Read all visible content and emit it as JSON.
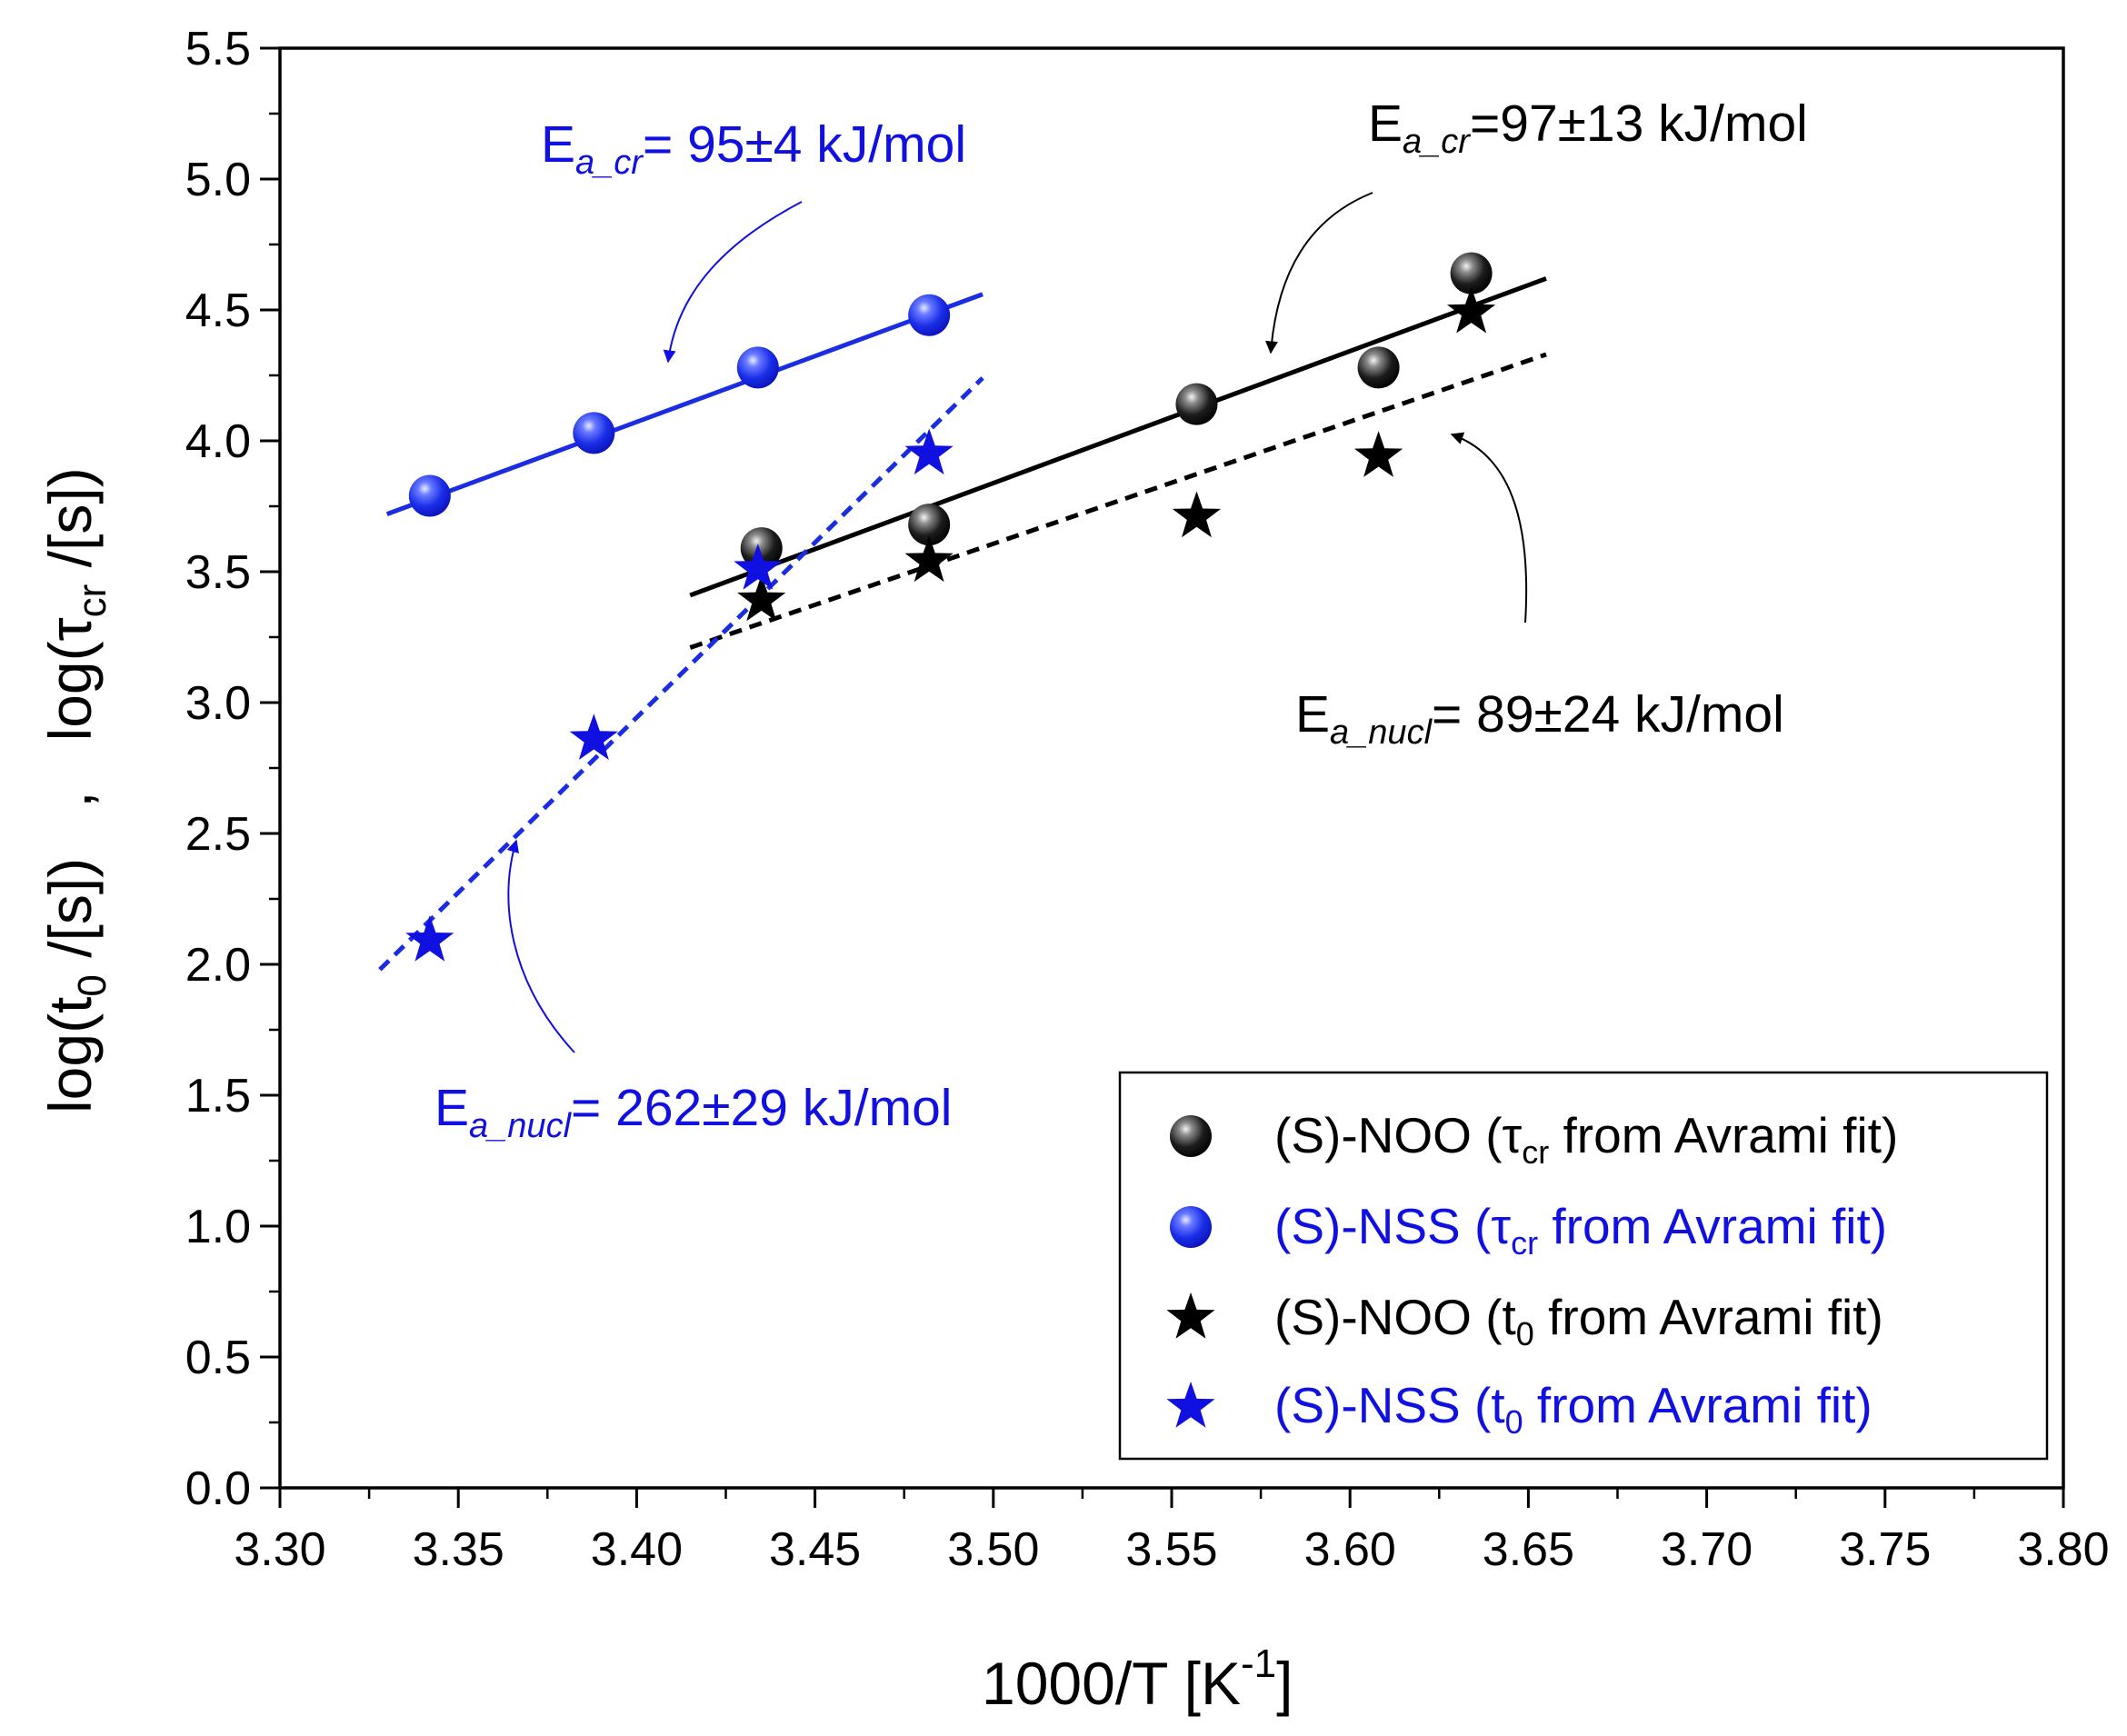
{
  "colors": {
    "black": "#000000",
    "blue": "#1010e0",
    "blue_line": "#1a2de0"
  },
  "chart_data": {
    "type": "scatter",
    "xlabel": {
      "main": "1000/T [K",
      "sup": "-1",
      "close": "]"
    },
    "ylabel": {
      "a": "log(t",
      "a_sub": "0",
      "a_tail": " /[s])",
      "sep": ",",
      "b": "log(",
      "b_sym": "τ",
      "b_sub": "cr",
      "b_tail": " /[s])"
    },
    "xlim": [
      3.3,
      3.8
    ],
    "ylim": [
      0.0,
      5.5
    ],
    "xticks": [
      "3.30",
      "3.35",
      "3.40",
      "3.45",
      "3.50",
      "3.55",
      "3.60",
      "3.65",
      "3.70",
      "3.75",
      "3.80"
    ],
    "yticks": [
      "0.0",
      "0.5",
      "1.0",
      "1.5",
      "2.0",
      "2.5",
      "3.0",
      "3.5",
      "4.0",
      "4.5",
      "5.0",
      "5.5"
    ],
    "series": [
      {
        "name": "(S)-NOO (τcr from Avrami fit)",
        "marker": "sphere",
        "color": "black",
        "points": [
          [
            3.435,
            3.59
          ],
          [
            3.482,
            3.68
          ],
          [
            3.557,
            4.14
          ],
          [
            3.608,
            4.28
          ],
          [
            3.634,
            4.64
          ]
        ],
        "fit": {
          "x": [
            3.415,
            3.655
          ],
          "y": [
            3.41,
            4.62
          ],
          "style": "solid"
        }
      },
      {
        "name": "(S)-NSS (τcr from Avrami fit)",
        "marker": "sphere",
        "color": "blue",
        "points": [
          [
            3.342,
            3.79
          ],
          [
            3.388,
            4.03
          ],
          [
            3.434,
            4.28
          ],
          [
            3.482,
            4.48
          ]
        ],
        "fit": {
          "x": [
            3.33,
            3.497
          ],
          "y": [
            3.72,
            4.56
          ],
          "style": "solid"
        }
      },
      {
        "name": "(S)-NOO (t0 from Avrami fit)",
        "marker": "star",
        "color": "black",
        "points": [
          [
            3.435,
            3.39
          ],
          [
            3.482,
            3.54
          ],
          [
            3.557,
            3.71
          ],
          [
            3.608,
            3.94
          ],
          [
            3.634,
            4.49
          ]
        ],
        "fit": {
          "x": [
            3.415,
            3.655
          ],
          "y": [
            3.21,
            4.33
          ],
          "style": "dashed"
        }
      },
      {
        "name": "(S)-NSS (t0 from Avrami fit)",
        "marker": "star",
        "color": "blue",
        "points": [
          [
            3.342,
            2.09
          ],
          [
            3.388,
            2.86
          ],
          [
            3.434,
            3.51
          ],
          [
            3.482,
            3.95
          ]
        ],
        "fit": {
          "x": [
            3.328,
            3.497
          ],
          "y": [
            1.98,
            4.24
          ],
          "style": "dashed"
        }
      }
    ],
    "annotations": [
      {
        "id": "ea-cr-blue",
        "color": "blue",
        "prefix": "E",
        "sub": "a_cr",
        "text": "= 95±4 kJ/mol"
      },
      {
        "id": "ea-cr-black",
        "color": "black",
        "prefix": "E",
        "sub": "a_cr",
        "text": "=97±13 kJ/mol"
      },
      {
        "id": "ea-nucl-black",
        "color": "black",
        "prefix": "E",
        "sub": "a_nucl",
        "text": "= 89±24 kJ/mol"
      },
      {
        "id": "ea-nucl-blue",
        "color": "blue",
        "prefix": "E",
        "sub": "a_nucl",
        "text": "= 262±29 kJ/mol"
      }
    ],
    "legend": {
      "placement": "bottom-right",
      "entries": [
        {
          "marker": "sphere",
          "color": "black",
          "pre": "(S)-NOO (",
          "sym": "τ",
          "sub": "cr",
          "post": " from Avrami fit)"
        },
        {
          "marker": "sphere",
          "color": "blue",
          "pre": "(S)-NSS (",
          "sym": "τ",
          "sub": "cr",
          "post": " from Avrami fit)"
        },
        {
          "marker": "star",
          "color": "black",
          "pre": "(S)-NOO (",
          "sym": "t",
          "sub": "0",
          "post": " from Avrami fit)"
        },
        {
          "marker": "star",
          "color": "blue",
          "pre": "(S)-NSS (",
          "sym": "t",
          "sub": "0",
          "post": " from Avrami fit)"
        }
      ]
    }
  }
}
